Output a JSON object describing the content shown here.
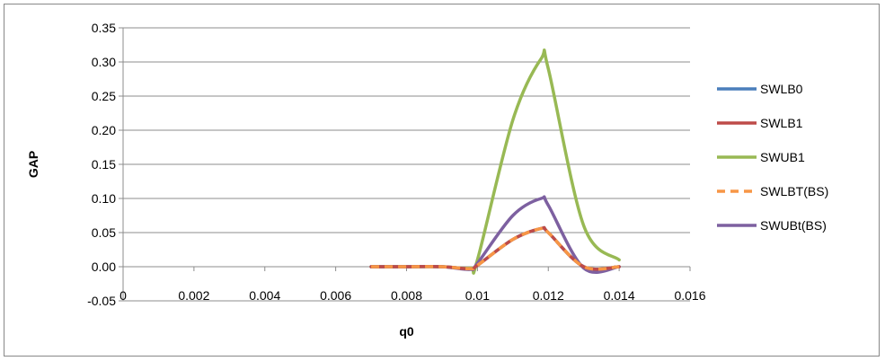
{
  "chart_data": {
    "type": "line",
    "title": "",
    "xlabel": "q0",
    "ylabel": "GAP",
    "xlim": [
      0,
      0.016
    ],
    "ylim": [
      -0.05,
      0.35
    ],
    "x_ticks": [
      "0",
      "0.002",
      "0.004",
      "0.006",
      "0.008",
      "0.01",
      "0.012",
      "0.014",
      "0.016"
    ],
    "y_ticks": [
      "-0.05",
      "0.00",
      "0.05",
      "0.10",
      "0.15",
      "0.20",
      "0.25",
      "0.30",
      "0.35"
    ],
    "grid": "horizontal",
    "legend_position": "right",
    "x": [
      0.007,
      0.008,
      0.009,
      0.0098,
      0.01,
      0.011,
      0.0118,
      0.012,
      0.013,
      0.014
    ],
    "series": [
      {
        "name": "SWLB0",
        "color": "#4a7ebb",
        "dash": "solid",
        "values": [
          0,
          0,
          0,
          -0.003,
          0.002,
          0.04,
          0.056,
          0.05,
          0.0,
          0.0
        ]
      },
      {
        "name": "SWLB1",
        "color": "#be4b48",
        "dash": "solid",
        "values": [
          0,
          0,
          0,
          -0.003,
          0.002,
          0.04,
          0.056,
          0.05,
          0.0,
          0.0
        ]
      },
      {
        "name": "SWUB1",
        "color": "#98b954",
        "dash": "solid",
        "values": [
          0,
          0,
          0,
          -0.002,
          0.01,
          0.215,
          0.305,
          0.29,
          0.06,
          0.01
        ]
      },
      {
        "name": "SWLBT(BS)",
        "color": "#f79646",
        "dash": "dashed",
        "values": [
          0,
          0,
          0,
          -0.003,
          0.002,
          0.04,
          0.056,
          0.05,
          0.0,
          0.0
        ]
      },
      {
        "name": "SWUBt(BS)",
        "color": "#7d60a0",
        "dash": "solid",
        "values": [
          0,
          0,
          0,
          -0.004,
          0.005,
          0.075,
          0.1,
          0.09,
          -0.002,
          0.0
        ]
      }
    ]
  }
}
